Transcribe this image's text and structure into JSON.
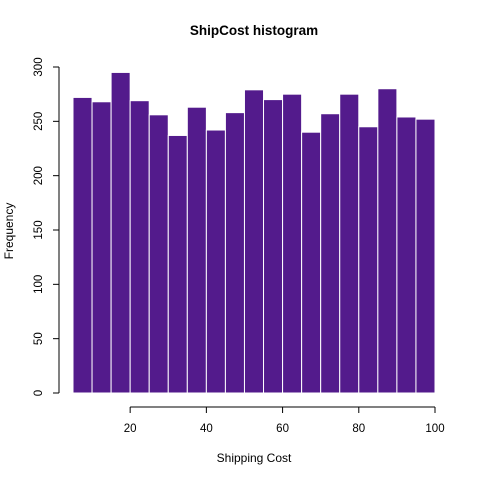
{
  "chart_data": {
    "type": "bar",
    "title": "ShipCost histogram",
    "xlabel": "Shipping Cost",
    "ylabel": "Frequency",
    "bar_color": "#531b8c",
    "bin_edges": [
      5,
      10,
      15,
      20,
      25,
      30,
      35,
      40,
      45,
      50,
      55,
      60,
      65,
      70,
      75,
      80,
      85,
      90,
      95,
      100
    ],
    "values": [
      272,
      268,
      295,
      269,
      256,
      237,
      263,
      242,
      258,
      279,
      270,
      275,
      240,
      257,
      275,
      245,
      280,
      254,
      252
    ],
    "xlim": [
      5,
      100
    ],
    "ylim": [
      0,
      300
    ],
    "x_ticks": [
      20,
      40,
      60,
      80,
      100
    ],
    "y_ticks": [
      0,
      50,
      100,
      150,
      200,
      250,
      300
    ],
    "x_tick_labels": [
      "20",
      "40",
      "60",
      "80",
      "100"
    ],
    "y_tick_labels": [
      "0",
      "50",
      "100",
      "150",
      "200",
      "250",
      "300"
    ],
    "grid": false
  }
}
